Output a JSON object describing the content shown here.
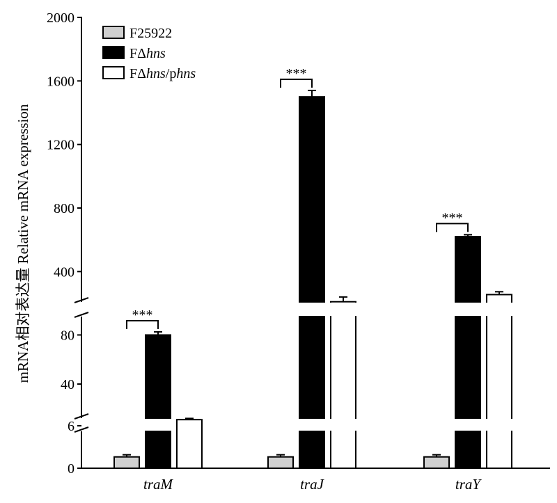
{
  "chart_data": {
    "type": "bar",
    "ylabel": "mRNA相对表达量 Relative mRNA expression",
    "categories": [
      "traM",
      "traJ",
      "traY"
    ],
    "series": [
      {
        "name_parts": [
          {
            "t": "F25922",
            "i": false
          }
        ],
        "fill": "#d0d0d0",
        "values": [
          1.6,
          1.6,
          1.6
        ],
        "errors": [
          0.3,
          0.3,
          0.3
        ]
      },
      {
        "name_parts": [
          {
            "t": "FΔ",
            "i": false
          },
          {
            "t": "hns",
            "i": true
          }
        ],
        "fill": "#000000",
        "values": [
          80,
          1500,
          620
        ],
        "errors": [
          2.5,
          40,
          12
        ]
      },
      {
        "name_parts": [
          {
            "t": "FΔ",
            "i": false
          },
          {
            "t": "hns",
            "i": true
          },
          {
            "t": "/p",
            "i": false
          },
          {
            "t": "hns",
            "i": true
          }
        ],
        "fill": "#ffffff",
        "values": [
          11,
          210,
          255
        ],
        "errors": [
          1.0,
          30,
          18
        ]
      }
    ],
    "segments": [
      {
        "range": [
          0,
          6
        ],
        "ticks": [
          0,
          6
        ]
      },
      {
        "range": [
          6,
          95
        ],
        "ticks": [
          40,
          80
        ]
      },
      {
        "range": [
          165,
          2000
        ],
        "ticks": [
          400,
          800,
          1200,
          1600,
          2000
        ]
      }
    ],
    "significance": [
      {
        "category": "traM",
        "label": "***"
      },
      {
        "category": "traJ",
        "label": "***"
      },
      {
        "category": "traY",
        "label": "***"
      }
    ],
    "legend_position": "top-left",
    "grid": false
  }
}
